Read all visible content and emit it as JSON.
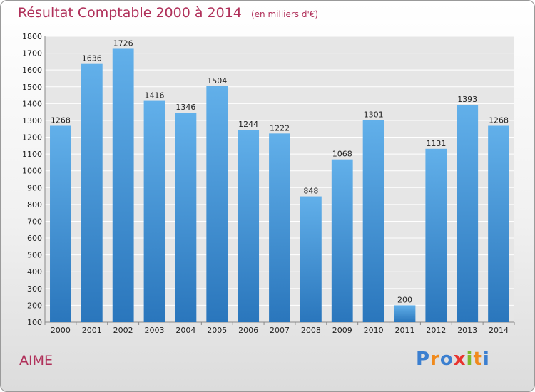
{
  "title": "Résultat Comptable 2000 à 2014",
  "subtitle": "(en milliers d'€)",
  "commune": "AIME",
  "logo": {
    "letters": [
      {
        "char": "P",
        "color": "#3b7fd0"
      },
      {
        "char": "r",
        "color": "#f08a1c"
      },
      {
        "char": "o",
        "color": "#3b7fd0"
      },
      {
        "char": "x",
        "color": "#e8342f"
      },
      {
        "char": "i",
        "color": "#7dbb2c"
      },
      {
        "char": "t",
        "color": "#f08a1c"
      },
      {
        "char": "i",
        "color": "#3b7fd0"
      }
    ]
  },
  "colors": {
    "bar_top": "#62b0ea",
    "bar_bottom": "#2a76bc",
    "title": "#b0305a"
  },
  "chart_data": {
    "type": "bar",
    "title": "Résultat Comptable 2000 à 2014",
    "subtitle": "(en milliers d'€)",
    "categories": [
      "2000",
      "2001",
      "2002",
      "2003",
      "2004",
      "2005",
      "2006",
      "2007",
      "2008",
      "2009",
      "2010",
      "2011",
      "2012",
      "2013",
      "2014"
    ],
    "values": [
      1268,
      1636,
      1726,
      1416,
      1346,
      1504,
      1244,
      1222,
      848,
      1068,
      1301,
      200,
      1131,
      1393,
      1268
    ],
    "ylim": [
      100,
      1800
    ],
    "yticks": [
      100,
      200,
      300,
      400,
      500,
      600,
      700,
      800,
      900,
      1000,
      1100,
      1200,
      1300,
      1400,
      1500,
      1600,
      1700,
      1800
    ],
    "grid": true,
    "data_labels": true
  }
}
